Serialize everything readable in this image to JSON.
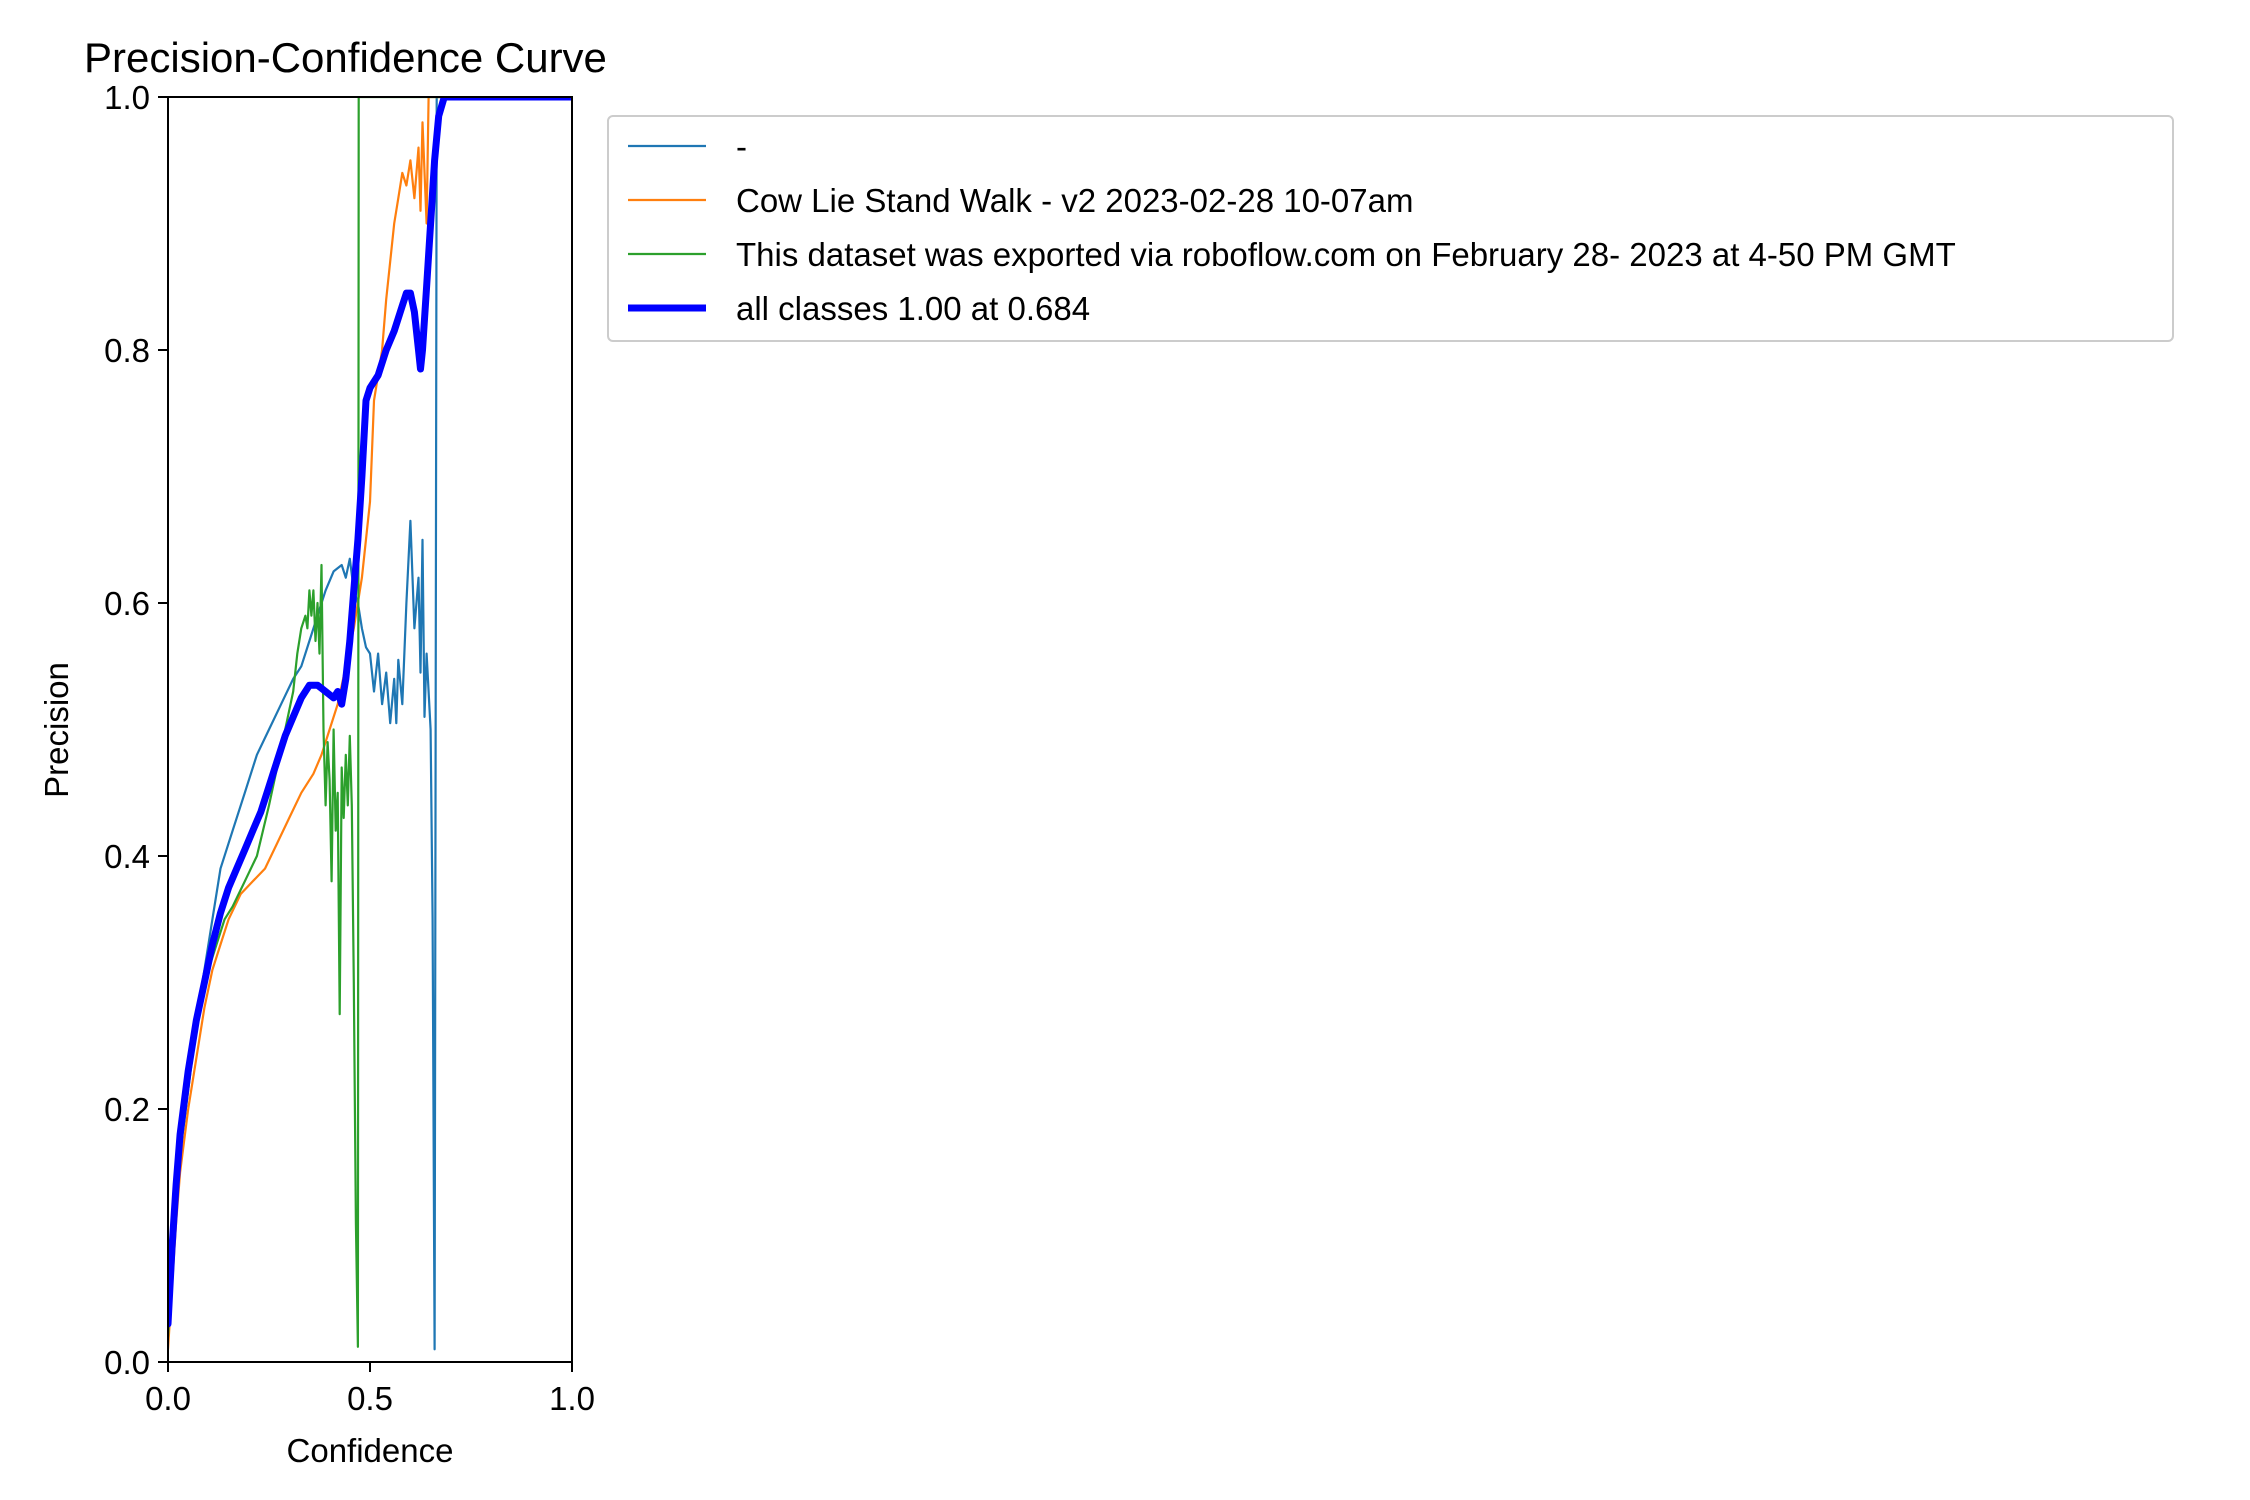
{
  "chart_data": {
    "type": "line",
    "title": "Precision-Confidence Curve",
    "xlabel": "Confidence",
    "ylabel": "Precision",
    "xlim": [
      0,
      1
    ],
    "ylim": [
      0,
      1
    ],
    "xticks": [
      "0.0",
      "0.5",
      "1.0"
    ],
    "yticks": [
      "0.0",
      "0.2",
      "0.4",
      "0.6",
      "0.8",
      "1.0"
    ],
    "grid": false,
    "legend_position": "outside-right-top",
    "series": [
      {
        "name": "-",
        "color": "#1f77b4",
        "width": "thin",
        "points": [
          [
            0.0,
            0.02
          ],
          [
            0.01,
            0.08
          ],
          [
            0.02,
            0.14
          ],
          [
            0.03,
            0.18
          ],
          [
            0.05,
            0.23
          ],
          [
            0.07,
            0.27
          ],
          [
            0.09,
            0.31
          ],
          [
            0.11,
            0.35
          ],
          [
            0.13,
            0.39
          ],
          [
            0.16,
            0.42
          ],
          [
            0.19,
            0.45
          ],
          [
            0.22,
            0.48
          ],
          [
            0.25,
            0.5
          ],
          [
            0.28,
            0.52
          ],
          [
            0.31,
            0.54
          ],
          [
            0.33,
            0.55
          ],
          [
            0.35,
            0.57
          ],
          [
            0.37,
            0.59
          ],
          [
            0.39,
            0.61
          ],
          [
            0.41,
            0.625
          ],
          [
            0.43,
            0.63
          ],
          [
            0.44,
            0.62
          ],
          [
            0.45,
            0.635
          ],
          [
            0.46,
            0.61
          ],
          [
            0.47,
            0.6
          ],
          [
            0.48,
            0.58
          ],
          [
            0.49,
            0.565
          ],
          [
            0.5,
            0.56
          ],
          [
            0.51,
            0.53
          ],
          [
            0.52,
            0.56
          ],
          [
            0.53,
            0.52
          ],
          [
            0.54,
            0.545
          ],
          [
            0.55,
            0.505
          ],
          [
            0.56,
            0.54
          ],
          [
            0.565,
            0.505
          ],
          [
            0.57,
            0.555
          ],
          [
            0.58,
            0.52
          ],
          [
            0.59,
            0.6
          ],
          [
            0.6,
            0.665
          ],
          [
            0.61,
            0.58
          ],
          [
            0.62,
            0.62
          ],
          [
            0.625,
            0.545
          ],
          [
            0.63,
            0.65
          ],
          [
            0.635,
            0.51
          ],
          [
            0.64,
            0.56
          ],
          [
            0.65,
            0.5
          ],
          [
            0.655,
            0.35
          ],
          [
            0.66,
            0.01
          ],
          [
            0.665,
            1.0
          ],
          [
            1.0,
            1.0
          ]
        ]
      },
      {
        "name": "Cow Lie Stand Walk - v2 2023-02-28 10-07am",
        "color": "#ff7f0e",
        "width": "thin",
        "points": [
          [
            0.0,
            0.01
          ],
          [
            0.01,
            0.06
          ],
          [
            0.02,
            0.11
          ],
          [
            0.03,
            0.15
          ],
          [
            0.05,
            0.2
          ],
          [
            0.07,
            0.24
          ],
          [
            0.09,
            0.28
          ],
          [
            0.11,
            0.31
          ],
          [
            0.13,
            0.33
          ],
          [
            0.15,
            0.35
          ],
          [
            0.18,
            0.37
          ],
          [
            0.21,
            0.38
          ],
          [
            0.24,
            0.39
          ],
          [
            0.27,
            0.41
          ],
          [
            0.3,
            0.43
          ],
          [
            0.33,
            0.45
          ],
          [
            0.36,
            0.465
          ],
          [
            0.38,
            0.48
          ],
          [
            0.4,
            0.5
          ],
          [
            0.42,
            0.52
          ],
          [
            0.44,
            0.55
          ],
          [
            0.46,
            0.58
          ],
          [
            0.48,
            0.62
          ],
          [
            0.5,
            0.68
          ],
          [
            0.51,
            0.76
          ],
          [
            0.53,
            0.8
          ],
          [
            0.54,
            0.84
          ],
          [
            0.55,
            0.87
          ],
          [
            0.56,
            0.9
          ],
          [
            0.57,
            0.92
          ],
          [
            0.58,
            0.94
          ],
          [
            0.59,
            0.93
          ],
          [
            0.6,
            0.95
          ],
          [
            0.61,
            0.92
          ],
          [
            0.62,
            0.96
          ],
          [
            0.625,
            0.91
          ],
          [
            0.63,
            0.98
          ],
          [
            0.64,
            0.9
          ],
          [
            0.645,
            1.0
          ],
          [
            0.66,
            1.0
          ],
          [
            1.0,
            1.0
          ]
        ]
      },
      {
        "name": "This dataset was exported via roboflow.com on February 28- 2023 at 4-50 PM GMT",
        "color": "#2ca02c",
        "width": "thin",
        "points": [
          [
            0.0,
            0.02
          ],
          [
            0.01,
            0.08
          ],
          [
            0.02,
            0.14
          ],
          [
            0.04,
            0.19
          ],
          [
            0.06,
            0.24
          ],
          [
            0.08,
            0.28
          ],
          [
            0.1,
            0.31
          ],
          [
            0.12,
            0.33
          ],
          [
            0.14,
            0.35
          ],
          [
            0.16,
            0.36
          ],
          [
            0.19,
            0.38
          ],
          [
            0.22,
            0.4
          ],
          [
            0.25,
            0.44
          ],
          [
            0.27,
            0.47
          ],
          [
            0.29,
            0.5
          ],
          [
            0.31,
            0.53
          ],
          [
            0.32,
            0.56
          ],
          [
            0.33,
            0.58
          ],
          [
            0.34,
            0.59
          ],
          [
            0.345,
            0.58
          ],
          [
            0.35,
            0.61
          ],
          [
            0.355,
            0.59
          ],
          [
            0.36,
            0.61
          ],
          [
            0.365,
            0.57
          ],
          [
            0.37,
            0.6
          ],
          [
            0.375,
            0.56
          ],
          [
            0.38,
            0.63
          ],
          [
            0.385,
            0.5
          ],
          [
            0.39,
            0.44
          ],
          [
            0.395,
            0.49
          ],
          [
            0.4,
            0.46
          ],
          [
            0.405,
            0.38
          ],
          [
            0.41,
            0.5
          ],
          [
            0.415,
            0.42
          ],
          [
            0.42,
            0.45
          ],
          [
            0.425,
            0.275
          ],
          [
            0.43,
            0.47
          ],
          [
            0.435,
            0.43
          ],
          [
            0.44,
            0.48
          ],
          [
            0.445,
            0.44
          ],
          [
            0.45,
            0.495
          ],
          [
            0.455,
            0.44
          ],
          [
            0.46,
            0.3
          ],
          [
            0.465,
            0.11
          ],
          [
            0.47,
            0.012
          ],
          [
            0.472,
            1.0
          ],
          [
            1.0,
            1.0
          ]
        ]
      },
      {
        "name": "all classes 1.00 at 0.684",
        "color": "#0000ff",
        "width": "thick",
        "points": [
          [
            0.0,
            0.03
          ],
          [
            0.01,
            0.09
          ],
          [
            0.02,
            0.14
          ],
          [
            0.03,
            0.18
          ],
          [
            0.05,
            0.23
          ],
          [
            0.07,
            0.27
          ],
          [
            0.09,
            0.3
          ],
          [
            0.11,
            0.33
          ],
          [
            0.13,
            0.355
          ],
          [
            0.15,
            0.375
          ],
          [
            0.17,
            0.39
          ],
          [
            0.19,
            0.405
          ],
          [
            0.21,
            0.42
          ],
          [
            0.23,
            0.435
          ],
          [
            0.25,
            0.455
          ],
          [
            0.27,
            0.475
          ],
          [
            0.29,
            0.495
          ],
          [
            0.31,
            0.51
          ],
          [
            0.33,
            0.525
          ],
          [
            0.35,
            0.535
          ],
          [
            0.37,
            0.535
          ],
          [
            0.39,
            0.53
          ],
          [
            0.41,
            0.525
          ],
          [
            0.42,
            0.53
          ],
          [
            0.43,
            0.52
          ],
          [
            0.44,
            0.54
          ],
          [
            0.45,
            0.57
          ],
          [
            0.46,
            0.61
          ],
          [
            0.47,
            0.65
          ],
          [
            0.48,
            0.7
          ],
          [
            0.49,
            0.76
          ],
          [
            0.5,
            0.77
          ],
          [
            0.52,
            0.78
          ],
          [
            0.54,
            0.8
          ],
          [
            0.56,
            0.815
          ],
          [
            0.58,
            0.835
          ],
          [
            0.59,
            0.845
          ],
          [
            0.6,
            0.845
          ],
          [
            0.61,
            0.83
          ],
          [
            0.62,
            0.8
          ],
          [
            0.625,
            0.785
          ],
          [
            0.63,
            0.8
          ],
          [
            0.64,
            0.85
          ],
          [
            0.65,
            0.9
          ],
          [
            0.66,
            0.95
          ],
          [
            0.67,
            0.985
          ],
          [
            0.684,
            1.0
          ],
          [
            1.0,
            1.0
          ]
        ]
      }
    ]
  }
}
